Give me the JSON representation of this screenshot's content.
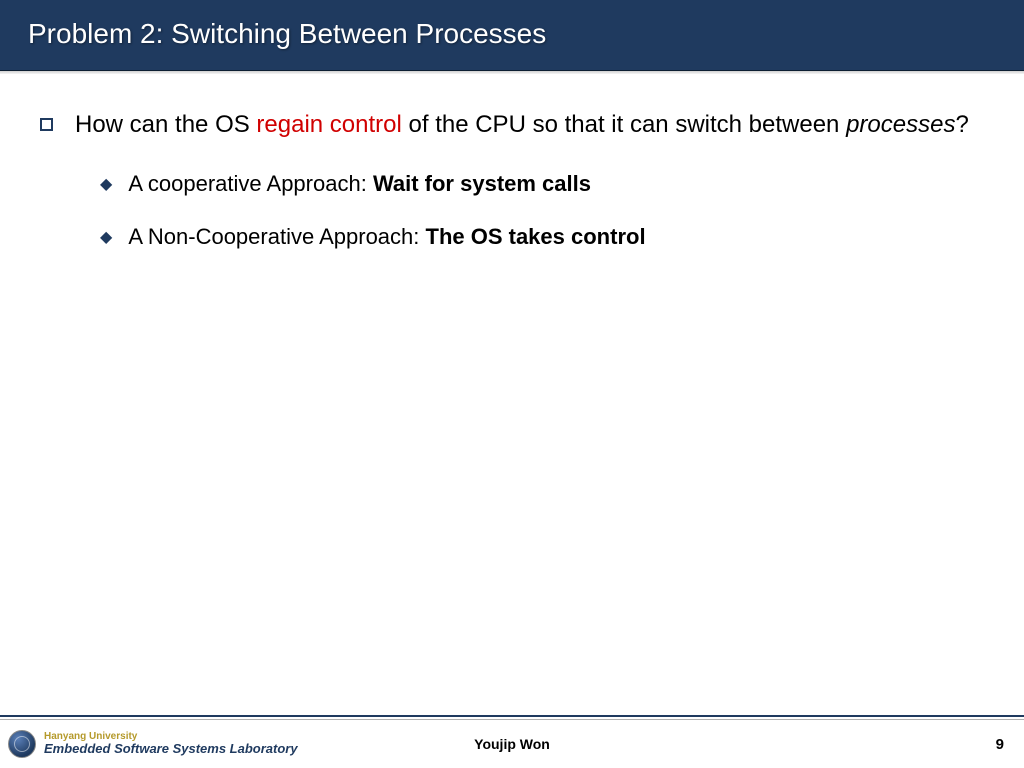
{
  "title": "Problem 2: Switching Between Processes",
  "colors": {
    "header_bg": "#1f3a5f",
    "header_text": "#ffffff",
    "accent_red": "#d00000",
    "bullet_border": "#1f3a5f",
    "footer_line": "#1f3a5f",
    "logo_univ": "#b59a2b",
    "logo_lab": "#1f3a5f"
  },
  "typography": {
    "title_fontsize": 28,
    "body_fontsize": 24,
    "sub_fontsize": 22,
    "footer_fontsize": 14
  },
  "bullets": {
    "main": {
      "pre": "How can the OS ",
      "red": "regain control",
      "mid": " of the CPU so that it can switch between ",
      "italic": "processes",
      "post": "?"
    },
    "sub1": {
      "pre": "A cooperative Approach: ",
      "bold": "Wait for system calls"
    },
    "sub2": {
      "pre": "A Non-Cooperative Approach: ",
      "bold": "The OS takes control"
    }
  },
  "footer": {
    "university": "Hanyang University",
    "lab": "Embedded Software Systems Laboratory",
    "author": "Youjip Won",
    "page": "9"
  }
}
